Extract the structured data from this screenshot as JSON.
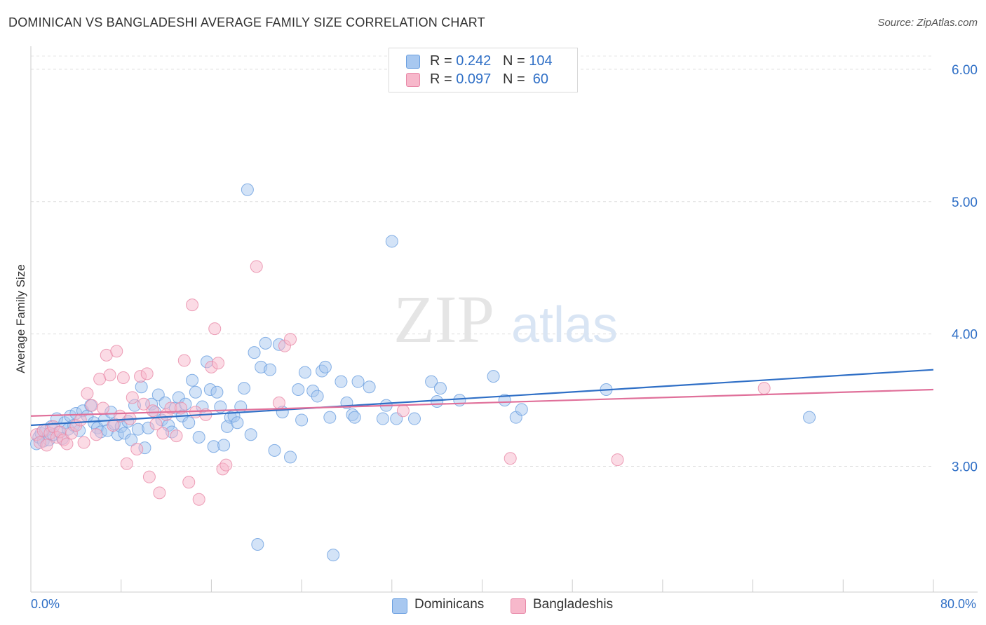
{
  "header": {
    "title": "DOMINICAN VS BANGLADESHI AVERAGE FAMILY SIZE CORRELATION CHART",
    "source": "Source: ZipAtlas.com"
  },
  "watermark": {
    "zip": "ZIP",
    "atlas": "atlas"
  },
  "legend": {
    "rows": [
      {
        "r_label": "R = ",
        "r_value": "0.242",
        "n_label": "N = ",
        "n_value": "104",
        "color": "#a8c8f0",
        "edge": "#6a9fe0"
      },
      {
        "r_label": "R = ",
        "r_value": "0.097",
        "n_label": "N = ",
        "n_value": " 60",
        "color": "#f7b8cb",
        "edge": "#e889a8"
      }
    ]
  },
  "bottom_legend": [
    {
      "label": "Dominicans",
      "color": "#a8c8f0",
      "edge": "#6a9fe0"
    },
    {
      "label": "Bangladeshis",
      "color": "#f7b8cb",
      "edge": "#e889a8"
    }
  ],
  "chart_data": {
    "type": "scatter",
    "title": "DOMINICAN VS BANGLADESHI AVERAGE FAMILY SIZE CORRELATION CHART",
    "xlabel": "",
    "ylabel": "Average Family Size",
    "xlim": [
      0,
      80
    ],
    "ylim": [
      2.05,
      6.1
    ],
    "x_tick_labels": [
      "0.0%",
      "80.0%"
    ],
    "y_ticks": [
      3.0,
      4.0,
      5.0,
      6.0
    ],
    "y_tick_labels": [
      "3.00",
      "4.00",
      "5.00",
      "6.00"
    ],
    "grid": true,
    "legend_position": "top-center",
    "series": [
      {
        "name": "Dominicans",
        "color": "#6a9fe0",
        "fill": "#a8c8f0",
        "trend_color": "#2f6fc6",
        "trend": {
          "x": [
            0,
            80
          ],
          "y": [
            3.31,
            3.73
          ]
        },
        "points": [
          [
            0.5,
            3.17
          ],
          [
            0.7,
            3.22
          ],
          [
            0.9,
            3.25
          ],
          [
            1.1,
            3.19
          ],
          [
            1.3,
            3.27
          ],
          [
            1.6,
            3.2
          ],
          [
            1.8,
            3.3
          ],
          [
            2.0,
            3.24
          ],
          [
            2.3,
            3.36
          ],
          [
            2.5,
            3.26
          ],
          [
            2.8,
            3.21
          ],
          [
            3.0,
            3.33
          ],
          [
            3.3,
            3.28
          ],
          [
            3.5,
            3.38
          ],
          [
            3.8,
            3.31
          ],
          [
            4.0,
            3.4
          ],
          [
            4.3,
            3.27
          ],
          [
            4.6,
            3.42
          ],
          [
            5.0,
            3.38
          ],
          [
            5.3,
            3.46
          ],
          [
            5.6,
            3.33
          ],
          [
            5.9,
            3.29
          ],
          [
            6.2,
            3.26
          ],
          [
            6.5,
            3.35
          ],
          [
            6.8,
            3.27
          ],
          [
            7.1,
            3.41
          ],
          [
            7.4,
            3.32
          ],
          [
            7.7,
            3.24
          ],
          [
            8.0,
            3.3
          ],
          [
            8.3,
            3.25
          ],
          [
            8.6,
            3.34
          ],
          [
            8.9,
            3.2
          ],
          [
            9.2,
            3.46
          ],
          [
            9.5,
            3.28
          ],
          [
            9.8,
            3.6
          ],
          [
            10.1,
            3.14
          ],
          [
            10.4,
            3.29
          ],
          [
            10.7,
            3.47
          ],
          [
            11.0,
            3.41
          ],
          [
            11.3,
            3.54
          ],
          [
            11.6,
            3.35
          ],
          [
            11.9,
            3.48
          ],
          [
            12.2,
            3.31
          ],
          [
            12.5,
            3.26
          ],
          [
            12.8,
            3.44
          ],
          [
            13.1,
            3.52
          ],
          [
            13.4,
            3.38
          ],
          [
            13.7,
            3.47
          ],
          [
            14.0,
            3.33
          ],
          [
            14.3,
            3.65
          ],
          [
            14.6,
            3.56
          ],
          [
            14.9,
            3.22
          ],
          [
            15.2,
            3.45
          ],
          [
            15.6,
            3.79
          ],
          [
            15.9,
            3.58
          ],
          [
            16.2,
            3.15
          ],
          [
            16.5,
            3.56
          ],
          [
            16.8,
            3.45
          ],
          [
            17.1,
            3.16
          ],
          [
            17.4,
            3.3
          ],
          [
            17.7,
            3.37
          ],
          [
            18.0,
            3.38
          ],
          [
            18.3,
            3.33
          ],
          [
            18.6,
            3.45
          ],
          [
            18.9,
            3.59
          ],
          [
            19.2,
            5.09
          ],
          [
            19.5,
            3.24
          ],
          [
            19.8,
            3.86
          ],
          [
            20.1,
            2.41
          ],
          [
            20.4,
            3.75
          ],
          [
            20.8,
            3.93
          ],
          [
            21.2,
            3.73
          ],
          [
            21.6,
            3.12
          ],
          [
            22.0,
            3.92
          ],
          [
            22.3,
            3.41
          ],
          [
            23.0,
            3.07
          ],
          [
            23.7,
            3.58
          ],
          [
            24.0,
            3.35
          ],
          [
            24.3,
            3.71
          ],
          [
            25.0,
            3.57
          ],
          [
            25.4,
            3.53
          ],
          [
            25.8,
            3.72
          ],
          [
            26.1,
            3.75
          ],
          [
            26.5,
            3.37
          ],
          [
            26.8,
            2.33
          ],
          [
            27.5,
            3.64
          ],
          [
            28.0,
            3.48
          ],
          [
            28.5,
            3.39
          ],
          [
            28.7,
            3.37
          ],
          [
            29.0,
            3.64
          ],
          [
            30.0,
            3.6
          ],
          [
            31.2,
            3.36
          ],
          [
            31.5,
            3.46
          ],
          [
            32.0,
            4.7
          ],
          [
            32.4,
            3.36
          ],
          [
            34.0,
            3.36
          ],
          [
            35.5,
            3.64
          ],
          [
            36.0,
            3.49
          ],
          [
            36.3,
            3.59
          ],
          [
            38.0,
            3.5
          ],
          [
            41.0,
            3.68
          ],
          [
            42.0,
            3.5
          ],
          [
            43.0,
            3.37
          ],
          [
            43.5,
            3.43
          ],
          [
            51.0,
            3.58
          ],
          [
            69.0,
            3.37
          ]
        ]
      },
      {
        "name": "Bangladeshis",
        "color": "#e889a8",
        "fill": "#f7b8cb",
        "trend_color": "#e0709a",
        "trend": {
          "x": [
            0,
            80
          ],
          "y": [
            3.38,
            3.58
          ]
        },
        "points": [
          [
            0.5,
            3.24
          ],
          [
            0.8,
            3.18
          ],
          [
            1.1,
            3.27
          ],
          [
            1.4,
            3.16
          ],
          [
            1.7,
            3.25
          ],
          [
            2.0,
            3.3
          ],
          [
            2.3,
            3.22
          ],
          [
            2.6,
            3.26
          ],
          [
            2.9,
            3.2
          ],
          [
            3.2,
            3.17
          ],
          [
            3.6,
            3.25
          ],
          [
            4.0,
            3.31
          ],
          [
            4.4,
            3.35
          ],
          [
            4.7,
            3.18
          ],
          [
            5.0,
            3.55
          ],
          [
            5.4,
            3.46
          ],
          [
            5.8,
            3.24
          ],
          [
            6.1,
            3.66
          ],
          [
            6.4,
            3.44
          ],
          [
            6.7,
            3.84
          ],
          [
            7.0,
            3.69
          ],
          [
            7.3,
            3.31
          ],
          [
            7.6,
            3.87
          ],
          [
            7.9,
            3.38
          ],
          [
            8.2,
            3.67
          ],
          [
            8.5,
            3.02
          ],
          [
            8.8,
            3.36
          ],
          [
            9.0,
            3.52
          ],
          [
            9.4,
            3.13
          ],
          [
            9.7,
            3.68
          ],
          [
            10.0,
            3.47
          ],
          [
            10.3,
            3.7
          ],
          [
            10.5,
            2.92
          ],
          [
            10.8,
            3.42
          ],
          [
            11.1,
            3.32
          ],
          [
            11.4,
            2.8
          ],
          [
            11.7,
            3.25
          ],
          [
            12.0,
            3.39
          ],
          [
            12.4,
            3.44
          ],
          [
            12.9,
            3.23
          ],
          [
            13.3,
            3.44
          ],
          [
            13.6,
            3.8
          ],
          [
            14.0,
            2.88
          ],
          [
            14.3,
            4.22
          ],
          [
            14.6,
            3.41
          ],
          [
            14.9,
            2.75
          ],
          [
            15.5,
            3.39
          ],
          [
            16.0,
            3.75
          ],
          [
            16.3,
            4.04
          ],
          [
            16.6,
            3.78
          ],
          [
            17.0,
            2.98
          ],
          [
            17.3,
            3.01
          ],
          [
            20.0,
            4.51
          ],
          [
            22.0,
            3.48
          ],
          [
            22.5,
            3.91
          ],
          [
            23.0,
            3.96
          ],
          [
            33.0,
            3.42
          ],
          [
            42.5,
            3.06
          ],
          [
            52.0,
            3.05
          ],
          [
            65.0,
            3.59
          ]
        ]
      }
    ]
  }
}
